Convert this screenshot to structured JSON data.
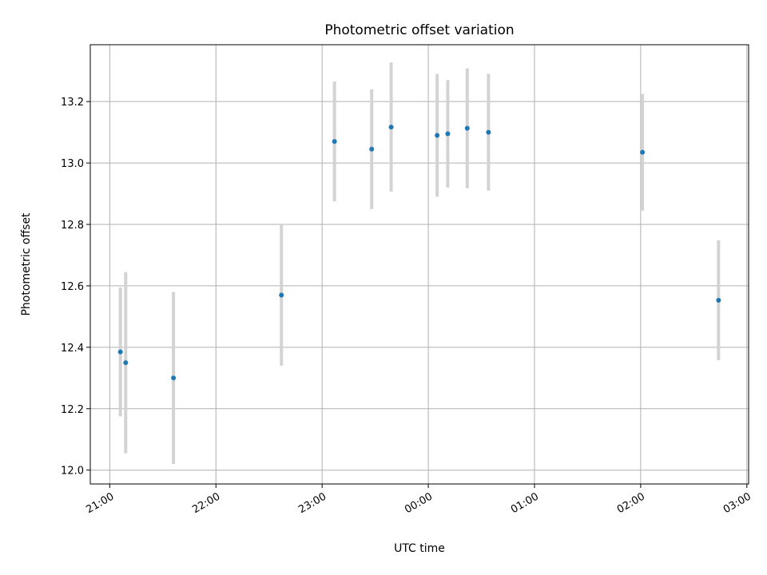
{
  "chart_data": {
    "type": "scatter",
    "title": "Photometric offset variation",
    "xlabel": "UTC time",
    "ylabel": "Photometric offset",
    "x_format": "HH:MM",
    "xlim": [
      "20:49",
      "03:01"
    ],
    "ylim": [
      11.955,
      13.385
    ],
    "x_ticks": [
      "21:00",
      "22:00",
      "23:00",
      "00:00",
      "01:00",
      "02:00",
      "03:00"
    ],
    "y_ticks": [
      "12.0",
      "12.2",
      "12.4",
      "12.6",
      "12.8",
      "13.0",
      "13.2"
    ],
    "grid": true,
    "point_color": "#1f77b4",
    "errorbar_color": "#d3d3d3",
    "points": [
      {
        "x": "21:06",
        "y": 12.385,
        "err": 0.21
      },
      {
        "x": "21:09",
        "y": 12.35,
        "err": 0.295
      },
      {
        "x": "21:36",
        "y": 12.3,
        "err": 0.28
      },
      {
        "x": "22:37",
        "y": 12.57,
        "err": 0.23
      },
      {
        "x": "23:07",
        "y": 13.07,
        "err": 0.195
      },
      {
        "x": "23:28",
        "y": 13.045,
        "err": 0.195
      },
      {
        "x": "23:39",
        "y": 13.117,
        "err": 0.21
      },
      {
        "x": "00:05",
        "y": 13.09,
        "err": 0.2
      },
      {
        "x": "00:11",
        "y": 13.095,
        "err": 0.175
      },
      {
        "x": "00:22",
        "y": 13.113,
        "err": 0.195
      },
      {
        "x": "00:34",
        "y": 13.1,
        "err": 0.19
      },
      {
        "x": "02:01",
        "y": 13.035,
        "err": 0.19
      },
      {
        "x": "02:44",
        "y": 12.553,
        "err": 0.195
      }
    ]
  }
}
